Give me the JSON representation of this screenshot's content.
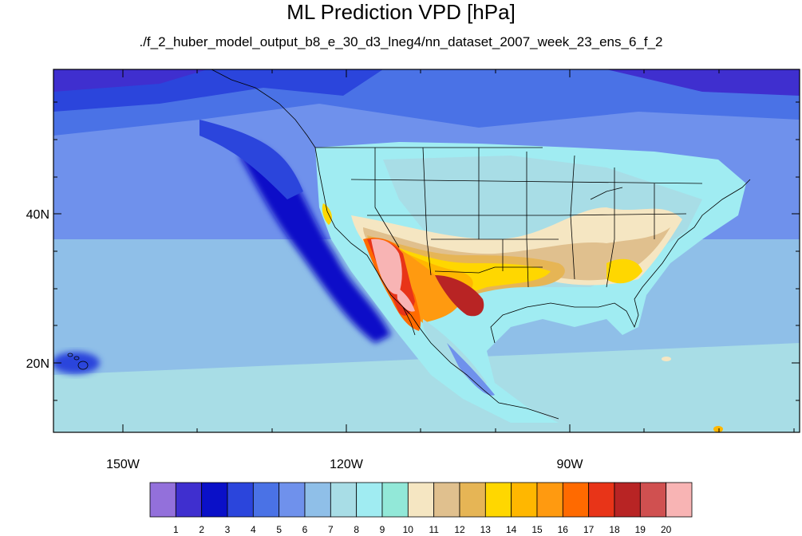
{
  "title": "ML Prediction VPD [hPa]",
  "subtitle": "./f_2_huber_model_output_b8_e_30_d3_lneg4/nn_dataset_2007_week_23_ens_6_f_2",
  "x_axis": {
    "ticks": [
      "150W",
      "120W",
      "90W"
    ]
  },
  "y_axis": {
    "ticks": [
      "40N",
      "20N"
    ]
  },
  "colorbar": {
    "labels": [
      "1",
      "2",
      "3",
      "4",
      "5",
      "6",
      "7",
      "8",
      "9",
      "10",
      "11",
      "12",
      "13",
      "14",
      "15",
      "16",
      "17",
      "18",
      "19",
      "20"
    ],
    "colors": [
      "#9370db",
      "#3f2fcf",
      "#0a10c8",
      "#2b45dc",
      "#4a72e6",
      "#6f91ec",
      "#8fbfe8",
      "#a8dde6",
      "#a0ecf2",
      "#92e8d8",
      "#f5e6c2",
      "#e0c08e",
      "#e6b555",
      "#ffd700",
      "#ffb700",
      "#ff9a10",
      "#ff6a00",
      "#e83418",
      "#b82424",
      "#d05050",
      "#f8b4b4"
    ]
  }
}
